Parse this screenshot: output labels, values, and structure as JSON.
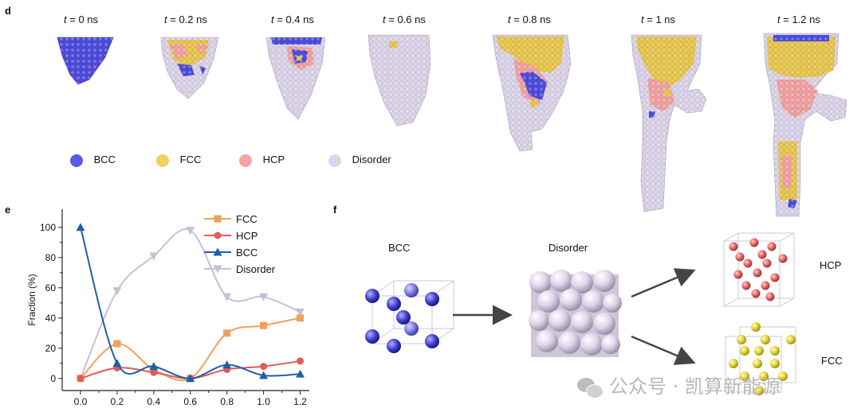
{
  "panel_d": {
    "letter": "d",
    "time_var": "t",
    "times": [
      "= 0 ns",
      "= 0.2 ns",
      "= 0.4 ns",
      "= 0.6 ns",
      "= 0.8 ns",
      "= 1 ns",
      "= 1.2 ns"
    ],
    "legend": [
      {
        "label": "BCC",
        "color": "#5a5ae6"
      },
      {
        "label": "FCC",
        "color": "#f0d060"
      },
      {
        "label": "HCP",
        "color": "#f4a3a3"
      },
      {
        "label": "Disorder",
        "color": "#ddd4ec"
      }
    ]
  },
  "panel_e": {
    "letter": "e"
  },
  "panel_f": {
    "letter": "f",
    "labels": {
      "bcc": "BCC",
      "disorder": "Disorder",
      "hcp": "HCP",
      "fcc": "FCC"
    }
  },
  "watermark": "公众号 · 凯算新能源",
  "chart_data": {
    "type": "line",
    "x": [
      0.0,
      0.2,
      0.4,
      0.6,
      0.8,
      1.0,
      1.2
    ],
    "xticks": [
      "0.0",
      "0.2",
      "0.4",
      "0.6",
      "0.8",
      "1.0",
      "1.2"
    ],
    "ylabel": "Fraction (%)",
    "yticks": [
      "0",
      "20",
      "40",
      "60",
      "80",
      "100"
    ],
    "xlim": [
      -0.1,
      1.25
    ],
    "ylim": [
      -8,
      112
    ],
    "series": [
      {
        "name": "FCC",
        "color": "#f0a05a",
        "marker": "square",
        "values": [
          0,
          23,
          6,
          0,
          30,
          35,
          40
        ]
      },
      {
        "name": "HCP",
        "color": "#e05a5a",
        "marker": "circle",
        "values": [
          0,
          7,
          4,
          0,
          6,
          8,
          11.5
        ]
      },
      {
        "name": "BCC",
        "color": "#1f5fa8",
        "marker": "triangle-up",
        "values": [
          100,
          10,
          8,
          0,
          9,
          2,
          3
        ]
      },
      {
        "name": "Disorder",
        "color": "#c8bfd8",
        "marker": "triangle-down",
        "values": [
          0,
          58,
          81,
          98,
          54,
          54,
          44
        ]
      }
    ]
  }
}
